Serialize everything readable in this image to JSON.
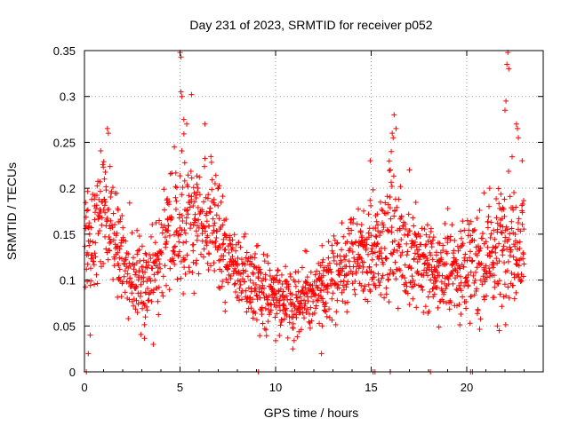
{
  "chart_data": {
    "type": "scatter",
    "title": "Day 231 of 2023, SRMTID for receiver p052",
    "xlabel": "GPS time / hours",
    "ylabel": "SRMTID / TECUs",
    "xlim": [
      0,
      24
    ],
    "ylim": [
      0,
      0.35
    ],
    "x_ticks": [
      0,
      5,
      10,
      15,
      20
    ],
    "x_tick_labels": [
      "0",
      "5",
      "10",
      "15",
      "20"
    ],
    "y_ticks": [
      0,
      0.05,
      0.1,
      0.15,
      0.2,
      0.25,
      0.3,
      0.35
    ],
    "y_tick_labels": [
      "0",
      "0.05",
      "0.1",
      "0.15",
      "0.2",
      "0.25",
      "0.3",
      "0.35"
    ],
    "grid": true,
    "marker": "+",
    "color": "#ff0000",
    "sampling": "one point per minute per satellite track, approx. 0.0-23.0 h",
    "trend_profile": [
      {
        "x": 0.0,
        "y": 0.13,
        "spread": 0.04
      },
      {
        "x": 1.0,
        "y": 0.19,
        "spread": 0.05
      },
      {
        "x": 2.0,
        "y": 0.12,
        "spread": 0.04
      },
      {
        "x": 3.3,
        "y": 0.09,
        "spread": 0.04
      },
      {
        "x": 4.0,
        "y": 0.13,
        "spread": 0.04
      },
      {
        "x": 5.0,
        "y": 0.17,
        "spread": 0.05
      },
      {
        "x": 6.5,
        "y": 0.16,
        "spread": 0.05
      },
      {
        "x": 8.0,
        "y": 0.11,
        "spread": 0.03
      },
      {
        "x": 10.0,
        "y": 0.08,
        "spread": 0.03
      },
      {
        "x": 12.0,
        "y": 0.08,
        "spread": 0.03
      },
      {
        "x": 13.5,
        "y": 0.12,
        "spread": 0.04
      },
      {
        "x": 15.0,
        "y": 0.13,
        "spread": 0.04
      },
      {
        "x": 16.0,
        "y": 0.15,
        "spread": 0.05
      },
      {
        "x": 17.5,
        "y": 0.12,
        "spread": 0.04
      },
      {
        "x": 19.0,
        "y": 0.11,
        "spread": 0.04
      },
      {
        "x": 21.0,
        "y": 0.12,
        "spread": 0.04
      },
      {
        "x": 22.0,
        "y": 0.15,
        "spread": 0.05
      },
      {
        "x": 23.0,
        "y": 0.14,
        "spread": 0.04
      }
    ],
    "notable_points": [
      {
        "x": 0.2,
        "y": 0.02
      },
      {
        "x": 0.3,
        "y": 0.04
      },
      {
        "x": 1.2,
        "y": 0.265
      },
      {
        "x": 1.25,
        "y": 0.26
      },
      {
        "x": 3.6,
        "y": 0.03
      },
      {
        "x": 4.7,
        "y": 0.245
      },
      {
        "x": 5.0,
        "y": 0.348
      },
      {
        "x": 5.05,
        "y": 0.343
      },
      {
        "x": 5.05,
        "y": 0.305
      },
      {
        "x": 5.1,
        "y": 0.3
      },
      {
        "x": 5.2,
        "y": 0.275
      },
      {
        "x": 5.35,
        "y": 0.27
      },
      {
        "x": 5.6,
        "y": 0.302
      },
      {
        "x": 6.3,
        "y": 0.27
      },
      {
        "x": 10.9,
        "y": 0.025
      },
      {
        "x": 12.4,
        "y": 0.02
      },
      {
        "x": 14.95,
        "y": 0.23
      },
      {
        "x": 15.35,
        "y": 0.16
      },
      {
        "x": 16.0,
        "y": 0.22
      },
      {
        "x": 16.05,
        "y": 0.24
      },
      {
        "x": 16.1,
        "y": 0.26
      },
      {
        "x": 16.15,
        "y": 0.255
      },
      {
        "x": 16.2,
        "y": 0.28
      },
      {
        "x": 16.3,
        "y": 0.265
      },
      {
        "x": 17.0,
        "y": 0.22
      },
      {
        "x": 20.9,
        "y": 0.195
      },
      {
        "x": 21.2,
        "y": 0.2
      },
      {
        "x": 21.6,
        "y": 0.05
      },
      {
        "x": 21.7,
        "y": 0.045
      },
      {
        "x": 22.0,
        "y": 0.285
      },
      {
        "x": 22.05,
        "y": 0.295
      },
      {
        "x": 22.1,
        "y": 0.335
      },
      {
        "x": 22.15,
        "y": 0.348
      },
      {
        "x": 22.2,
        "y": 0.33
      },
      {
        "x": 22.6,
        "y": 0.27
      },
      {
        "x": 22.65,
        "y": 0.265
      },
      {
        "x": 22.7,
        "y": 0.255
      },
      {
        "x": 22.9,
        "y": 0.23
      }
    ],
    "zero_points": [
      {
        "x": 0.1,
        "y": 0
      },
      {
        "x": 9.1,
        "y": 0
      },
      {
        "x": 15.1,
        "y": 0
      },
      {
        "x": 15.2,
        "y": 0
      },
      {
        "x": 16.0,
        "y": 0
      },
      {
        "x": 18.1,
        "y": 0
      },
      {
        "x": 20.2,
        "y": 0
      },
      {
        "x": 20.3,
        "y": 0
      }
    ]
  }
}
